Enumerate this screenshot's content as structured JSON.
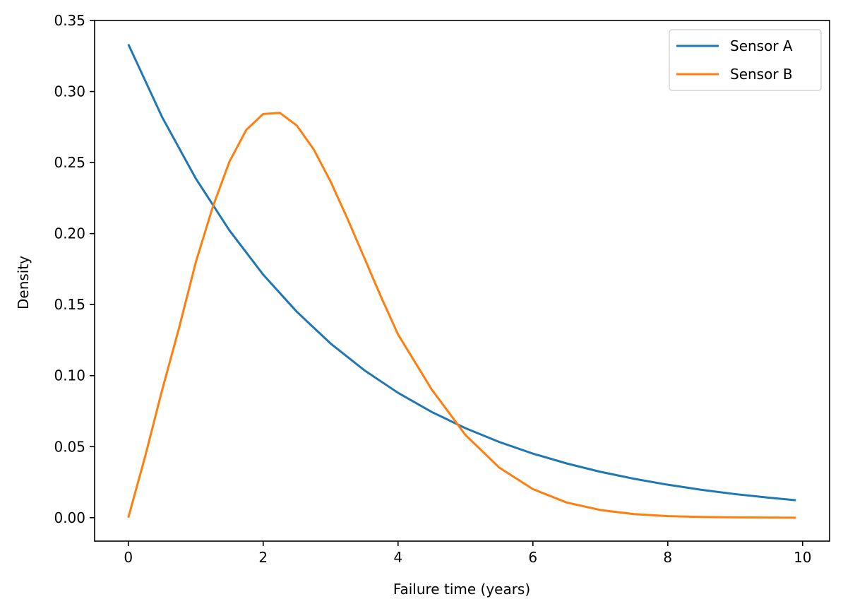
{
  "chart_data": {
    "type": "line",
    "title": "",
    "xlabel": "Failure time (years)",
    "ylabel": "Density",
    "xlim": [
      -0.5,
      10.4
    ],
    "ylim": [
      -0.0165,
      0.35
    ],
    "xticks": [
      0,
      2,
      4,
      6,
      8,
      10
    ],
    "xtick_labels": [
      "0",
      "2",
      "4",
      "6",
      "8",
      "10"
    ],
    "yticks": [
      0.0,
      0.05,
      0.1,
      0.15,
      0.2,
      0.25,
      0.3,
      0.35
    ],
    "ytick_labels": [
      "0.00",
      "0.05",
      "0.10",
      "0.15",
      "0.20",
      "0.25",
      "0.30",
      "0.35"
    ],
    "grid": false,
    "legend_position": "top-right",
    "series": [
      {
        "name": "Sensor A",
        "color": "#1f77b4",
        "x": [
          0.0,
          0.5,
          1.0,
          1.5,
          2.0,
          2.5,
          3.0,
          3.5,
          4.0,
          4.5,
          5.0,
          5.5,
          6.0,
          6.5,
          7.0,
          7.5,
          8.0,
          8.5,
          9.0,
          9.5,
          9.9
        ],
        "y": [
          0.3333,
          0.2821,
          0.2388,
          0.2022,
          0.1711,
          0.1449,
          0.1226,
          0.1038,
          0.0879,
          0.0744,
          0.063,
          0.0533,
          0.0451,
          0.0382,
          0.0323,
          0.0274,
          0.0232,
          0.0196,
          0.0166,
          0.0141,
          0.0123
        ]
      },
      {
        "name": "Sensor B",
        "color": "#ff7f0e",
        "x": [
          0.0,
          0.25,
          0.5,
          0.75,
          1.0,
          1.25,
          1.5,
          1.75,
          2.0,
          2.25,
          2.5,
          2.75,
          3.0,
          3.25,
          3.5,
          3.75,
          4.0,
          4.5,
          5.0,
          5.5,
          6.0,
          6.5,
          7.0,
          7.5,
          8.0,
          8.5,
          9.0,
          9.5,
          9.9
        ],
        "y": [
          0.0,
          0.0432,
          0.0896,
          0.1331,
          0.1797,
          0.2184,
          0.2507,
          0.273,
          0.2842,
          0.2849,
          0.276,
          0.2592,
          0.2366,
          0.2105,
          0.1829,
          0.1552,
          0.129,
          0.0902,
          0.0582,
          0.0353,
          0.0201,
          0.0107,
          0.0054,
          0.0025,
          0.0011,
          0.0005,
          0.0002,
          0.0001,
          0.0
        ]
      }
    ]
  }
}
